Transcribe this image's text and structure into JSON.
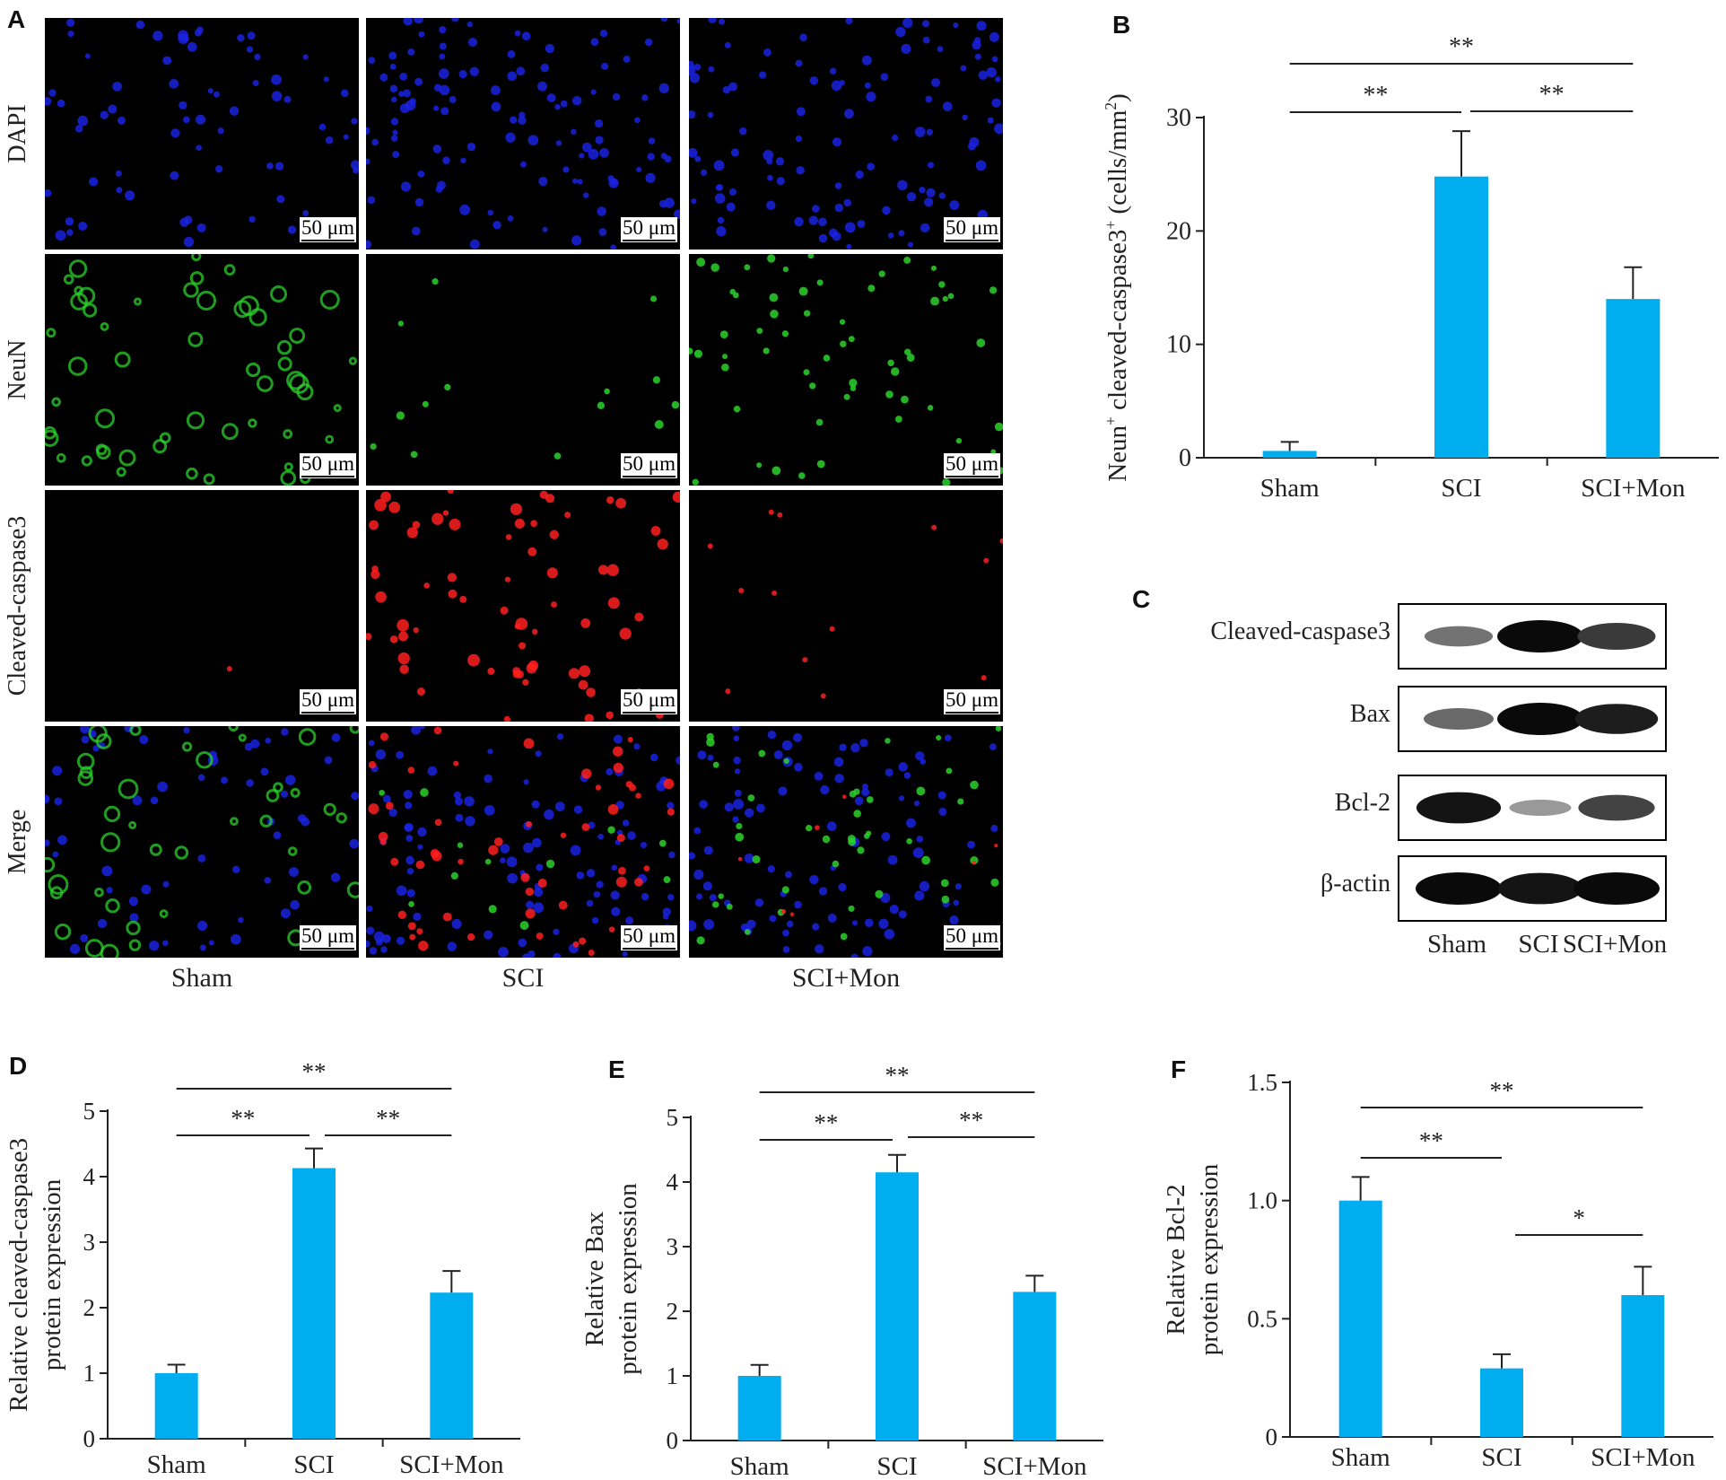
{
  "panels": {
    "A": "A",
    "B": "B",
    "C": "C",
    "D": "D",
    "E": "E",
    "F": "F"
  },
  "micrographs": {
    "row_labels": [
      "DAPI",
      "NeuN",
      "Cleaved-caspase3",
      "Merge"
    ],
    "col_labels": [
      "Sham",
      "SCI",
      "SCI+Mon"
    ],
    "scale_bar": "50 μm",
    "channel_colors": {
      "DAPI": "#1a22e0",
      "NeuN": "#2bd12b",
      "Cleaved-caspase3": "#ff1f1f"
    }
  },
  "western_blot": {
    "bands": [
      "Cleaved-caspase3",
      "Bax",
      "Bcl-2",
      "β-actin"
    ],
    "lanes": [
      "Sham",
      "SCI",
      "SCI+Mon"
    ],
    "band_intensity": [
      [
        0.45,
        1.0,
        0.75
      ],
      [
        0.5,
        1.0,
        0.9
      ],
      [
        0.95,
        0.25,
        0.7
      ],
      [
        1.0,
        0.95,
        1.0
      ]
    ]
  },
  "chart_data": [
    {
      "id": "B",
      "type": "bar",
      "categories": [
        "Sham",
        "SCI",
        "SCI+Mon"
      ],
      "values": [
        0.6,
        24.8,
        14.0
      ],
      "errors": [
        0.8,
        4.0,
        2.8
      ],
      "ylabel_parts": [
        "Neun",
        "+",
        " cleaved-caspase3",
        "+",
        " (cells/mm",
        "2",
        ")"
      ],
      "ylim": [
        0,
        30
      ],
      "yticks": [
        0,
        10,
        20,
        30
      ],
      "significance": [
        {
          "from": 0,
          "to": 2,
          "label": "**"
        },
        {
          "from": 0,
          "to": 1,
          "label": "**"
        },
        {
          "from": 1,
          "to": 2,
          "label": "**"
        }
      ],
      "bar_color": "#00aeef"
    },
    {
      "id": "D",
      "type": "bar",
      "categories": [
        "Sham",
        "SCI",
        "SCI+Mon"
      ],
      "values": [
        1.0,
        4.13,
        2.23
      ],
      "errors": [
        0.13,
        0.3,
        0.33
      ],
      "ylabel_lines": [
        "Relative cleaved-caspase3",
        "protein expression"
      ],
      "ylim": [
        0,
        5
      ],
      "yticks": [
        0,
        1,
        2,
        3,
        4,
        5
      ],
      "significance": [
        {
          "from": 0,
          "to": 2,
          "label": "**"
        },
        {
          "from": 0,
          "to": 1,
          "label": "**"
        },
        {
          "from": 1,
          "to": 2,
          "label": "**"
        }
      ],
      "bar_color": "#00aeef"
    },
    {
      "id": "E",
      "type": "bar",
      "categories": [
        "Sham",
        "SCI",
        "SCI+Mon"
      ],
      "values": [
        1.0,
        4.15,
        2.3
      ],
      "errors": [
        0.17,
        0.27,
        0.25
      ],
      "ylabel_lines": [
        "Relative Bax",
        "protein expression"
      ],
      "ylim": [
        0,
        5
      ],
      "yticks": [
        0,
        1,
        2,
        3,
        4,
        5
      ],
      "significance": [
        {
          "from": 0,
          "to": 2,
          "label": "**"
        },
        {
          "from": 0,
          "to": 1,
          "label": "**"
        },
        {
          "from": 1,
          "to": 2,
          "label": "**"
        }
      ],
      "bar_color": "#00aeef"
    },
    {
      "id": "F",
      "type": "bar",
      "categories": [
        "Sham",
        "SCI",
        "SCI+Mon"
      ],
      "values": [
        1.0,
        0.29,
        0.6
      ],
      "errors": [
        0.1,
        0.06,
        0.12
      ],
      "ylabel_lines": [
        "Relative Bcl-2",
        "protein expression"
      ],
      "ylim": [
        0,
        1.5
      ],
      "yticks": [
        0,
        0.5,
        1.0,
        1.5
      ],
      "ytick_labels": [
        "0",
        "0.5",
        "1.0",
        "1.5"
      ],
      "significance": [
        {
          "from": 0,
          "to": 2,
          "label": "**"
        },
        {
          "from": 0,
          "to": 1,
          "label": "**"
        },
        {
          "from": 1,
          "to": 2,
          "label": "*"
        }
      ],
      "bar_color": "#00aeef"
    }
  ]
}
